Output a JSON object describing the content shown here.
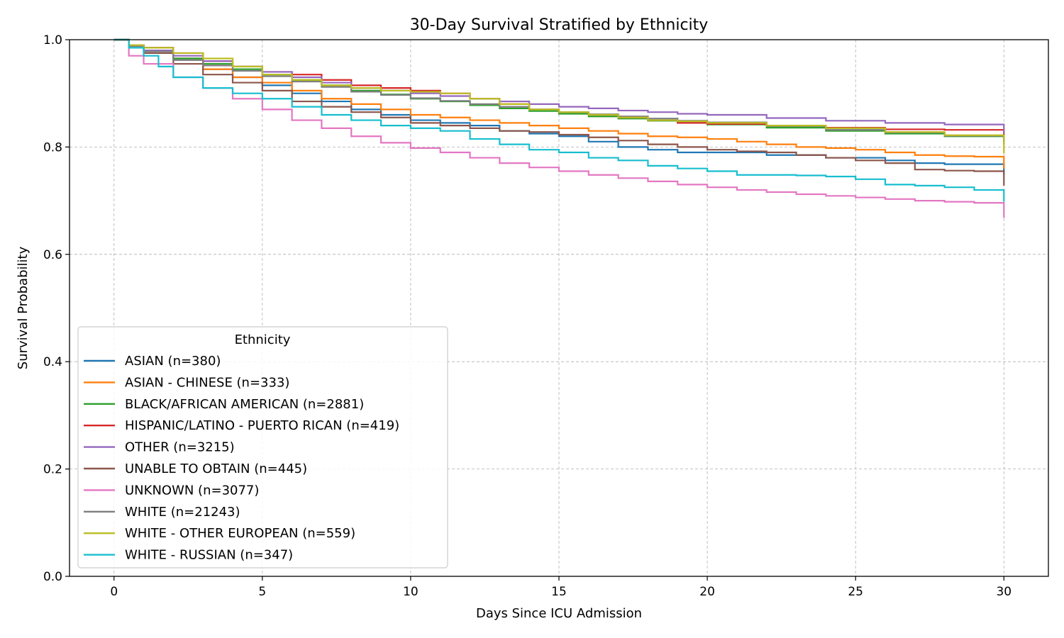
{
  "chart_data": {
    "type": "line",
    "title": "30-Day Survival Stratified by Ethnicity",
    "xlabel": "Days Since ICU Admission",
    "ylabel": "Survival Probability",
    "xlim": [
      -1.5,
      31.5
    ],
    "ylim": [
      0.0,
      1.0
    ],
    "xticks": [
      0,
      5,
      10,
      15,
      20,
      25,
      30
    ],
    "yticks": [
      0.0,
      0.2,
      0.4,
      0.6,
      0.8,
      1.0
    ],
    "grid": true,
    "legend": {
      "title": "Ethnicity",
      "placement": "lower-left"
    },
    "series": [
      {
        "name": "ASIAN (n=380)",
        "color": "#1f77b4",
        "x": [
          0,
          0.5,
          1,
          2,
          3,
          4,
          5,
          6,
          7,
          8,
          9,
          10,
          11,
          12,
          13,
          14,
          15,
          16,
          17,
          18,
          19,
          20,
          22,
          24,
          25,
          26,
          27,
          28,
          29,
          30,
          30
        ],
        "y": [
          1.0,
          0.99,
          0.985,
          0.965,
          0.945,
          0.93,
          0.915,
          0.9,
          0.885,
          0.87,
          0.86,
          0.85,
          0.845,
          0.84,
          0.83,
          0.825,
          0.82,
          0.81,
          0.8,
          0.795,
          0.79,
          0.79,
          0.785,
          0.78,
          0.78,
          0.775,
          0.77,
          0.768,
          0.768,
          0.768,
          0.748
        ]
      },
      {
        "name": "ASIAN - CHINESE (n=333)",
        "color": "#ff7f0e",
        "x": [
          0,
          0.5,
          1,
          2,
          3,
          4,
          5,
          6,
          7,
          8,
          9,
          10,
          11,
          12,
          13,
          14,
          15,
          16,
          17,
          18,
          19,
          20,
          21,
          22,
          23,
          24,
          25,
          26,
          27,
          28,
          29,
          30,
          30
        ],
        "y": [
          1.0,
          0.99,
          0.98,
          0.965,
          0.945,
          0.93,
          0.92,
          0.905,
          0.89,
          0.88,
          0.87,
          0.86,
          0.855,
          0.85,
          0.845,
          0.84,
          0.835,
          0.83,
          0.825,
          0.82,
          0.818,
          0.815,
          0.81,
          0.805,
          0.8,
          0.798,
          0.795,
          0.79,
          0.785,
          0.783,
          0.782,
          0.78,
          0.76
        ]
      },
      {
        "name": "BLACK/AFRICAN AMERICAN (n=2881)",
        "color": "#2ca02c",
        "x": [
          0,
          0.5,
          1,
          2,
          3,
          4,
          5,
          6,
          7,
          8,
          9,
          10,
          11,
          12,
          13,
          14,
          15,
          16,
          17,
          18,
          19,
          20,
          22,
          24,
          26,
          28,
          30,
          30
        ],
        "y": [
          1.0,
          0.99,
          0.98,
          0.965,
          0.955,
          0.945,
          0.935,
          0.925,
          0.915,
          0.905,
          0.898,
          0.89,
          0.885,
          0.878,
          0.872,
          0.867,
          0.862,
          0.857,
          0.853,
          0.849,
          0.845,
          0.842,
          0.836,
          0.83,
          0.825,
          0.82,
          0.815,
          0.81
        ]
      },
      {
        "name": "HISPANIC/LATINO - PUERTO RICAN (n=419)",
        "color": "#d62728",
        "x": [
          0,
          0.5,
          1,
          2,
          3,
          4,
          5,
          6,
          7,
          8,
          9,
          10,
          11,
          12,
          13,
          14,
          15,
          16,
          17,
          18,
          19,
          20,
          22,
          24,
          26,
          28,
          30,
          30
        ],
        "y": [
          1.0,
          0.99,
          0.985,
          0.975,
          0.96,
          0.95,
          0.94,
          0.935,
          0.925,
          0.915,
          0.91,
          0.905,
          0.9,
          0.89,
          0.88,
          0.87,
          0.865,
          0.86,
          0.855,
          0.85,
          0.845,
          0.843,
          0.84,
          0.836,
          0.833,
          0.832,
          0.83,
          0.81
        ]
      },
      {
        "name": "OTHER (n=3215)",
        "color": "#9467bd",
        "x": [
          0,
          0.5,
          1,
          2,
          3,
          4,
          5,
          6,
          7,
          8,
          9,
          10,
          11,
          12,
          13,
          14,
          15,
          16,
          17,
          18,
          19,
          20,
          22,
          24,
          26,
          28,
          30,
          30
        ],
        "y": [
          1.0,
          0.99,
          0.98,
          0.97,
          0.96,
          0.95,
          0.94,
          0.93,
          0.92,
          0.91,
          0.905,
          0.9,
          0.895,
          0.89,
          0.885,
          0.88,
          0.875,
          0.872,
          0.868,
          0.865,
          0.862,
          0.86,
          0.854,
          0.849,
          0.845,
          0.842,
          0.84,
          0.825
        ]
      },
      {
        "name": "UNABLE TO OBTAIN (n=445)",
        "color": "#8c564b",
        "x": [
          0,
          0.5,
          1,
          2,
          3,
          4,
          5,
          6,
          7,
          8,
          9,
          10,
          11,
          12,
          13,
          14,
          15,
          16,
          17,
          18,
          19,
          20,
          21,
          22,
          23,
          24,
          25,
          26,
          27,
          28,
          29,
          30,
          30
        ],
        "y": [
          1.0,
          0.985,
          0.975,
          0.955,
          0.935,
          0.92,
          0.905,
          0.885,
          0.875,
          0.865,
          0.855,
          0.845,
          0.84,
          0.835,
          0.83,
          0.828,
          0.823,
          0.818,
          0.812,
          0.805,
          0.8,
          0.795,
          0.792,
          0.79,
          0.785,
          0.78,
          0.775,
          0.77,
          0.758,
          0.756,
          0.755,
          0.755,
          0.728
        ]
      },
      {
        "name": "UNKNOWN (n=3077)",
        "color": "#e377c2",
        "x": [
          0,
          0.5,
          1,
          2,
          3,
          4,
          5,
          6,
          7,
          8,
          9,
          10,
          11,
          12,
          13,
          14,
          15,
          16,
          17,
          18,
          19,
          20,
          21,
          22,
          23,
          24,
          25,
          26,
          27,
          28,
          29,
          30,
          30
        ],
        "y": [
          1.0,
          0.97,
          0.955,
          0.93,
          0.91,
          0.89,
          0.87,
          0.85,
          0.835,
          0.82,
          0.808,
          0.798,
          0.79,
          0.78,
          0.77,
          0.762,
          0.755,
          0.748,
          0.742,
          0.736,
          0.73,
          0.725,
          0.72,
          0.716,
          0.712,
          0.709,
          0.706,
          0.703,
          0.7,
          0.698,
          0.696,
          0.695,
          0.668
        ]
      },
      {
        "name": "WHITE (n=21243)",
        "color": "#7f7f7f",
        "x": [
          0,
          0.5,
          1,
          2,
          3,
          4,
          5,
          6,
          7,
          8,
          9,
          10,
          11,
          12,
          13,
          14,
          15,
          16,
          17,
          18,
          19,
          20,
          22,
          24,
          26,
          28,
          30,
          30
        ],
        "y": [
          1.0,
          0.988,
          0.978,
          0.962,
          0.952,
          0.942,
          0.932,
          0.922,
          0.912,
          0.903,
          0.897,
          0.891,
          0.886,
          0.88,
          0.875,
          0.87,
          0.865,
          0.861,
          0.857,
          0.853,
          0.849,
          0.846,
          0.839,
          0.832,
          0.827,
          0.821,
          0.815,
          0.805
        ]
      },
      {
        "name": "WHITE - OTHER EUROPEAN (n=559)",
        "color": "#bcbd22",
        "x": [
          0,
          0.5,
          1,
          2,
          3,
          4,
          5,
          6,
          7,
          8,
          9,
          10,
          11,
          12,
          13,
          14,
          15,
          16,
          17,
          18,
          19,
          20,
          22,
          24,
          26,
          28,
          30,
          30
        ],
        "y": [
          1.0,
          0.99,
          0.985,
          0.975,
          0.965,
          0.95,
          0.935,
          0.925,
          0.915,
          0.91,
          0.905,
          0.903,
          0.9,
          0.89,
          0.88,
          0.87,
          0.865,
          0.86,
          0.855,
          0.85,
          0.848,
          0.845,
          0.84,
          0.835,
          0.828,
          0.822,
          0.82,
          0.788
        ]
      },
      {
        "name": "WHITE - RUSSIAN (n=347)",
        "color": "#17becf",
        "x": [
          0,
          0.5,
          1,
          1.5,
          2,
          3,
          4,
          5,
          6,
          7,
          8,
          9,
          10,
          11,
          12,
          13,
          14,
          15,
          16,
          17,
          18,
          19,
          20,
          21,
          22,
          23,
          24,
          25,
          26,
          27,
          28,
          29,
          30,
          30
        ],
        "y": [
          1.0,
          0.985,
          0.97,
          0.95,
          0.93,
          0.91,
          0.9,
          0.89,
          0.875,
          0.86,
          0.85,
          0.84,
          0.835,
          0.83,
          0.815,
          0.805,
          0.795,
          0.79,
          0.78,
          0.775,
          0.765,
          0.76,
          0.755,
          0.748,
          0.748,
          0.747,
          0.745,
          0.74,
          0.73,
          0.728,
          0.725,
          0.72,
          0.715,
          0.698
        ]
      }
    ]
  }
}
